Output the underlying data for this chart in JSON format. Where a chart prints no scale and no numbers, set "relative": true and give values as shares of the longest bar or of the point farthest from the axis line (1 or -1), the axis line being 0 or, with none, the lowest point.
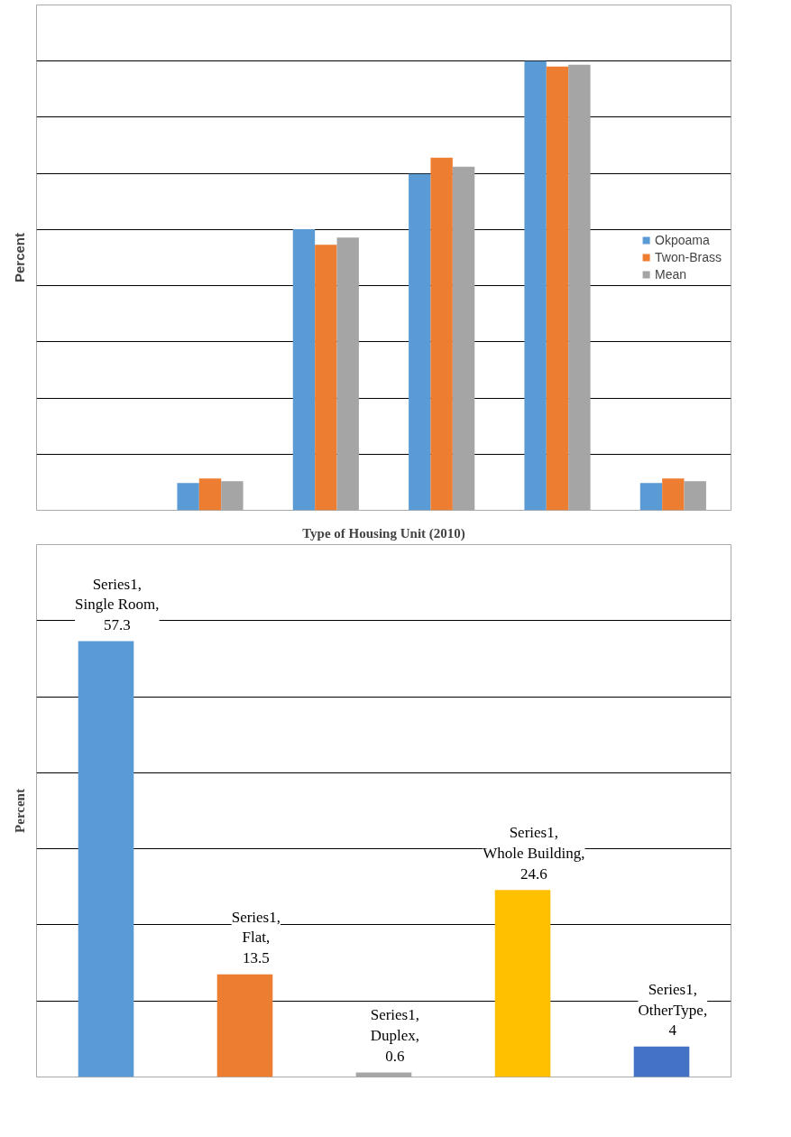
{
  "chart_data": [
    {
      "type": "bar",
      "ylabel": "Percent",
      "relative": true,
      "categories": [
        null,
        null,
        null,
        null,
        null
      ],
      "grid": "y",
      "legend": "right",
      "tick_labels": false,
      "series": [
        {
          "name": "Okpoama",
          "color": "#5b9bd5",
          "values": [
            0.061,
            0.626,
            0.749,
            1,
            0.061
          ]
        },
        {
          "name": "Twon-Brass",
          "color": "#ed7d31",
          "values": [
            0.071,
            0.591,
            0.785,
            0.988,
            0.071
          ]
        },
        {
          "name": "Mean",
          "color": "#a5a5a5",
          "values": [
            0.065,
            0.607,
            0.765,
            0.992,
            0.065
          ]
        }
      ]
    },
    {
      "type": "bar",
      "title": "Type of Housing Unit (2010)",
      "ylabel": "Percent",
      "categories": [
        null,
        null,
        null,
        null,
        null
      ],
      "values": [
        57.3,
        13.5,
        0.6,
        24.6,
        4
      ],
      "colors": [
        "#5b9bd5",
        "#ed7d31",
        "#a5a5a5",
        "#ffc000",
        "#4472c4"
      ],
      "value_labels": [
        "Series1, Single Room, 57.3",
        "Series1, Flat, 13.5",
        "Series1, Duplex, 0.6",
        "Series1, Whole Building, 24.6",
        "Series1, OtherType, 4"
      ],
      "ylim": [
        0,
        70
      ],
      "yticks": [
        {
          "value": 0,
          "label": null
        },
        {
          "value": 10,
          "label": null
        },
        {
          "value": 20,
          "label": null
        },
        {
          "value": 30,
          "label": null
        },
        {
          "value": 40,
          "label": null
        },
        {
          "value": 50,
          "label": null
        },
        {
          "value": 60,
          "label": null
        },
        {
          "value": 70,
          "label": null
        }
      ],
      "grid": "y",
      "tick_labels": false
    }
  ]
}
